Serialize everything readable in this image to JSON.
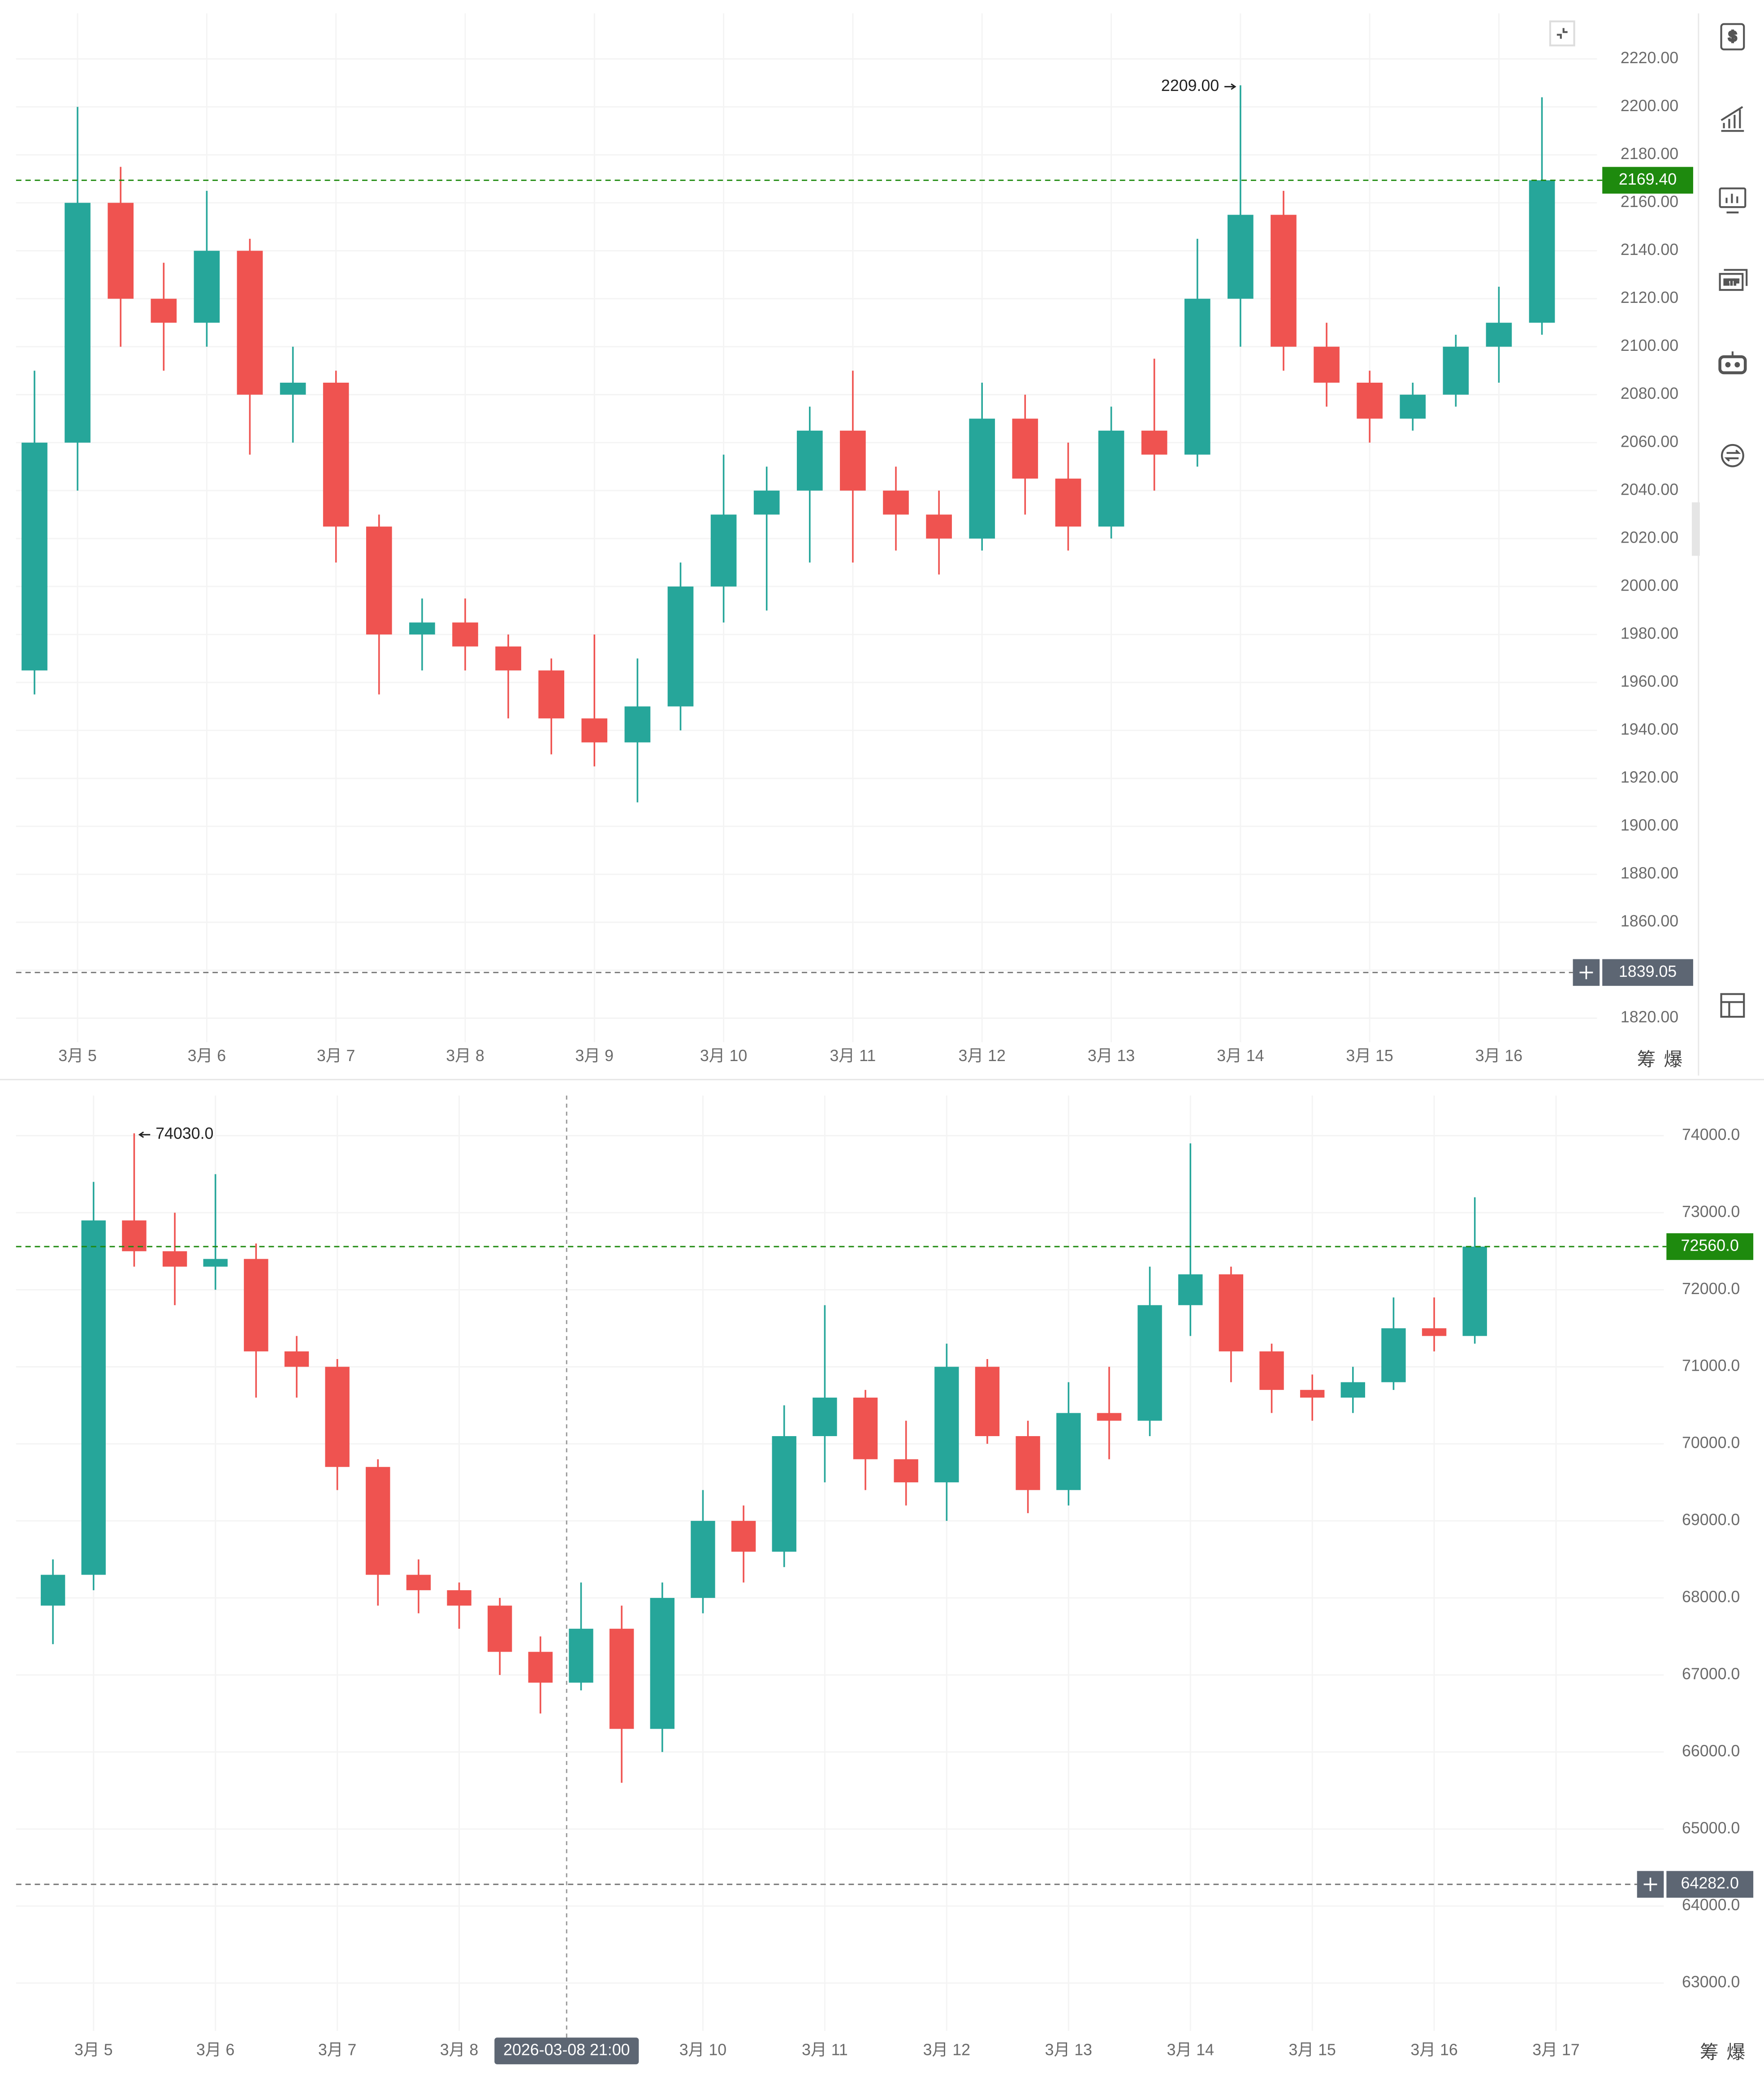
{
  "chart_data": [
    {
      "type": "candlestick",
      "categories": [
        null,
        "3月 5",
        null,
        null,
        "3月 6",
        null,
        null,
        "3月 7",
        null,
        null,
        "3月 8",
        null,
        null,
        "3月 9",
        null,
        null,
        "3月 10",
        null,
        null,
        "3月 11",
        null,
        null,
        "3月 12",
        null,
        null,
        "3月 13",
        null,
        null,
        "3月 14",
        null,
        null,
        "3月 15",
        null,
        null,
        "3月 16",
        null
      ],
      "open": [
        1965,
        2060,
        2160,
        2120,
        2110,
        2140,
        2080,
        2085,
        2025,
        1980,
        1985,
        1975,
        1965,
        1945,
        1935,
        1950,
        2000,
        2030,
        2040,
        2065,
        2040,
        2030,
        2020,
        2070,
        2045,
        2025,
        2065,
        2055,
        2120,
        2155,
        2100,
        2085,
        2070,
        2080,
        2100,
        2110
      ],
      "high": [
        2090,
        2200,
        2175,
        2135,
        2165,
        2145,
        2100,
        2090,
        2030,
        1995,
        1995,
        1980,
        1970,
        1980,
        1970,
        2010,
        2055,
        2050,
        2075,
        2090,
        2050,
        2040,
        2085,
        2080,
        2060,
        2075,
        2095,
        2145,
        2209,
        2165,
        2110,
        2090,
        2085,
        2105,
        2125,
        2204
      ],
      "low": [
        1955,
        2040,
        2100,
        2090,
        2100,
        2055,
        2060,
        2010,
        1955,
        1965,
        1965,
        1945,
        1930,
        1925,
        1910,
        1940,
        1985,
        1990,
        2010,
        2010,
        2015,
        2005,
        2015,
        2030,
        2015,
        2020,
        2040,
        2050,
        2100,
        2090,
        2075,
        2060,
        2065,
        2075,
        2085,
        2105
      ],
      "close": [
        2060,
        2160,
        2120,
        2110,
        2140,
        2080,
        2085,
        2025,
        1980,
        1985,
        1975,
        1965,
        1945,
        1935,
        1950,
        2000,
        2030,
        2040,
        2065,
        2040,
        2030,
        2020,
        2070,
        2045,
        2025,
        2065,
        2055,
        2120,
        2155,
        2100,
        2085,
        2070,
        2080,
        2100,
        2110,
        2169.4
      ],
      "up_color": "#26a69a",
      "down_color": "#ef5350",
      "ylim": [
        1810,
        2239
      ],
      "yticks": [
        {
          "value": 1820,
          "label": "1820.00"
        },
        {
          "value": 1840,
          "label": "1840.00"
        },
        {
          "value": 1860,
          "label": "1860.00"
        },
        {
          "value": 1880,
          "label": "1880.00"
        },
        {
          "value": 1900,
          "label": "1900.00"
        },
        {
          "value": 1920,
          "label": "1920.00"
        },
        {
          "value": 1940,
          "label": "1940.00"
        },
        {
          "value": 1960,
          "label": "1960.00"
        },
        {
          "value": 1980,
          "label": "1980.00"
        },
        {
          "value": 2000,
          "label": "2000.00"
        },
        {
          "value": 2020,
          "label": "2020.00"
        },
        {
          "value": 2040,
          "label": "2040.00"
        },
        {
          "value": 2060,
          "label": "2060.00"
        },
        {
          "value": 2080,
          "label": "2080.00"
        },
        {
          "value": 2100,
          "label": "2100.00"
        },
        {
          "value": 2120,
          "label": "2120.00"
        },
        {
          "value": 2140,
          "label": "2140.00"
        },
        {
          "value": 2160,
          "label": "2160.00"
        },
        {
          "value": 2180,
          "label": "2180.00"
        },
        {
          "value": 2200,
          "label": "2200.00"
        },
        {
          "value": 2220,
          "label": "2220.00"
        }
      ],
      "grid": true,
      "last_price": {
        "value": 2169.4,
        "label": "2169.40",
        "color": "#1e8a0e"
      },
      "price_line": {
        "value": 1839.05,
        "label": "1839.05"
      },
      "high_marker": {
        "value": 2209,
        "label": "2209.00"
      },
      "corner_buttons": [
        "筹",
        "爆"
      ]
    },
    {
      "type": "candlestick",
      "categories": [
        null,
        "3月 5",
        null,
        null,
        "3月 6",
        null,
        null,
        "3月 7",
        null,
        null,
        "3月 8",
        null,
        null,
        null,
        null,
        null,
        "3月 10",
        null,
        null,
        "3月 11",
        null,
        null,
        "3月 12",
        null,
        null,
        "3月 13",
        null,
        null,
        "3月 14",
        null,
        null,
        "3月 15",
        null,
        null,
        "3月 16",
        null,
        null,
        "3月 17"
      ],
      "open": [
        67900,
        68300,
        72900,
        72500,
        72300,
        72400,
        71200,
        71000,
        69700,
        68300,
        68100,
        67900,
        67300,
        66900,
        67600,
        66300,
        68000,
        69000,
        68600,
        70100,
        70600,
        69800,
        69500,
        71000,
        70100,
        69400,
        70400,
        70300,
        71800,
        72200,
        71200,
        70700,
        70600,
        70800,
        71500,
        71400,
        null,
        null
      ],
      "high": [
        68500,
        73400,
        74030,
        73000,
        73500,
        72600,
        71400,
        71100,
        69800,
        68500,
        68200,
        68000,
        67500,
        68200,
        67900,
        68200,
        69400,
        69200,
        70500,
        71800,
        70700,
        70300,
        71300,
        71100,
        70300,
        70800,
        71000,
        72300,
        73900,
        72300,
        71300,
        70900,
        71000,
        71900,
        71900,
        73200,
        null,
        null
      ],
      "low": [
        67400,
        68100,
        72300,
        71800,
        72000,
        70600,
        70600,
        69400,
        67900,
        67800,
        67600,
        67000,
        66500,
        66800,
        65600,
        66000,
        67800,
        68200,
        68400,
        69500,
        69400,
        69200,
        69000,
        70000,
        69100,
        69200,
        69800,
        70100,
        71400,
        70800,
        70400,
        70300,
        70400,
        70700,
        71200,
        71300,
        null,
        null
      ],
      "close": [
        68300,
        72900,
        72500,
        72300,
        72400,
        71200,
        71000,
        69700,
        68300,
        68100,
        67900,
        67300,
        66900,
        67600,
        66300,
        68000,
        69000,
        68600,
        70100,
        70600,
        69800,
        69500,
        71000,
        70100,
        69400,
        70400,
        70300,
        71800,
        72200,
        71200,
        70700,
        70600,
        70800,
        71500,
        71400,
        72560,
        null,
        null
      ],
      "up_color": "#26a69a",
      "down_color": "#ef5350",
      "ylim": [
        62380,
        74520
      ],
      "yticks": [
        {
          "value": 63000,
          "label": "63000.0"
        },
        {
          "value": 64000,
          "label": "64000.0"
        },
        {
          "value": 65000,
          "label": "65000.0"
        },
        {
          "value": 66000,
          "label": "66000.0"
        },
        {
          "value": 67000,
          "label": "67000.0"
        },
        {
          "value": 68000,
          "label": "68000.0"
        },
        {
          "value": 69000,
          "label": "69000.0"
        },
        {
          "value": 70000,
          "label": "70000.0"
        },
        {
          "value": 71000,
          "label": "71000.0"
        },
        {
          "value": 72000,
          "label": "72000.0"
        },
        {
          "value": 73000,
          "label": "73000.0"
        },
        {
          "value": 74000,
          "label": "74000.0"
        }
      ],
      "grid": true,
      "last_price": {
        "value": 72560,
        "label": "72560.0",
        "color": "#1e8a0e"
      },
      "price_line": {
        "value": 64282,
        "label": "64282.0"
      },
      "high_marker": {
        "value": 74030,
        "label": "74030.0"
      },
      "crosshair": {
        "label": "2026-03-08 21:00"
      },
      "corner_buttons": [
        "筹",
        "爆"
      ]
    }
  ]
}
